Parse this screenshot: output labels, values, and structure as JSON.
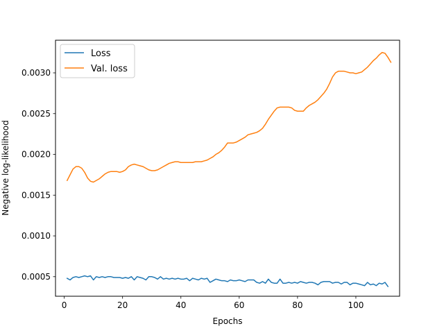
{
  "chart_data": {
    "type": "line",
    "title": "",
    "xlabel": "Epochs",
    "ylabel": "Negative log-likelihood",
    "xlim": [
      -3,
      115
    ],
    "ylim": [
      0.00026,
      0.0034
    ],
    "xticks": [
      0,
      20,
      40,
      60,
      80,
      100
    ],
    "yticks": [
      0.0005,
      0.001,
      0.0015,
      0.002,
      0.0025,
      0.003
    ],
    "ytick_labels": [
      "0.0005",
      "0.0010",
      "0.0015",
      "0.0020",
      "0.0025",
      "0.0030"
    ],
    "grid": false,
    "legend_position": "top-left",
    "series": [
      {
        "name": "Loss",
        "color": "#1f77b4",
        "points": [
          [
            1,
            0.00048
          ],
          [
            2,
            0.00046
          ],
          [
            3,
            0.00049
          ],
          [
            4,
            0.0005
          ],
          [
            5,
            0.00049
          ],
          [
            6,
            0.0005
          ],
          [
            7,
            0.00051
          ],
          [
            8,
            0.0005
          ],
          [
            9,
            0.00051
          ],
          [
            10,
            0.00046
          ],
          [
            11,
            0.0005
          ],
          [
            12,
            0.00049
          ],
          [
            13,
            0.0005
          ],
          [
            14,
            0.00049
          ],
          [
            15,
            0.0005
          ],
          [
            16,
            0.0005
          ],
          [
            17,
            0.00049
          ],
          [
            18,
            0.00049
          ],
          [
            19,
            0.00049
          ],
          [
            20,
            0.00048
          ],
          [
            21,
            0.00049
          ],
          [
            22,
            0.00048
          ],
          [
            23,
            0.0005
          ],
          [
            24,
            0.00046
          ],
          [
            25,
            0.0005
          ],
          [
            26,
            0.00049
          ],
          [
            27,
            0.00048
          ],
          [
            28,
            0.00046
          ],
          [
            29,
            0.0005
          ],
          [
            30,
            0.0005
          ],
          [
            31,
            0.00049
          ],
          [
            32,
            0.00047
          ],
          [
            33,
            0.0005
          ],
          [
            34,
            0.00047
          ],
          [
            35,
            0.00048
          ],
          [
            36,
            0.00047
          ],
          [
            37,
            0.00048
          ],
          [
            38,
            0.00047
          ],
          [
            39,
            0.00048
          ],
          [
            40,
            0.00047
          ],
          [
            41,
            0.00047
          ],
          [
            42,
            0.00048
          ],
          [
            43,
            0.00045
          ],
          [
            44,
            0.00048
          ],
          [
            45,
            0.00047
          ],
          [
            46,
            0.00046
          ],
          [
            47,
            0.00048
          ],
          [
            48,
            0.00047
          ],
          [
            49,
            0.00048
          ],
          [
            50,
            0.00043
          ],
          [
            51,
            0.00045
          ],
          [
            52,
            0.00047
          ],
          [
            53,
            0.00046
          ],
          [
            54,
            0.00045
          ],
          [
            55,
            0.00045
          ],
          [
            56,
            0.00044
          ],
          [
            57,
            0.00046
          ],
          [
            58,
            0.00045
          ],
          [
            59,
            0.00045
          ],
          [
            60,
            0.00046
          ],
          [
            61,
            0.00045
          ],
          [
            62,
            0.00044
          ],
          [
            63,
            0.00046
          ],
          [
            64,
            0.00046
          ],
          [
            65,
            0.00046
          ],
          [
            66,
            0.00043
          ],
          [
            67,
            0.00042
          ],
          [
            68,
            0.00044
          ],
          [
            69,
            0.00042
          ],
          [
            70,
            0.00047
          ],
          [
            71,
            0.00043
          ],
          [
            72,
            0.00042
          ],
          [
            73,
            0.00042
          ],
          [
            74,
            0.00047
          ],
          [
            75,
            0.00042
          ],
          [
            76,
            0.00042
          ],
          [
            77,
            0.00043
          ],
          [
            78,
            0.00042
          ],
          [
            79,
            0.00043
          ],
          [
            80,
            0.00042
          ],
          [
            81,
            0.00044
          ],
          [
            82,
            0.00043
          ],
          [
            83,
            0.00042
          ],
          [
            84,
            0.00043
          ],
          [
            85,
            0.00043
          ],
          [
            86,
            0.00042
          ],
          [
            87,
            0.0004
          ],
          [
            88,
            0.00043
          ],
          [
            89,
            0.00044
          ],
          [
            90,
            0.00044
          ],
          [
            91,
            0.00044
          ],
          [
            92,
            0.00042
          ],
          [
            93,
            0.00043
          ],
          [
            94,
            0.00043
          ],
          [
            95,
            0.00041
          ],
          [
            96,
            0.00043
          ],
          [
            97,
            0.00043
          ],
          [
            98,
            0.0004
          ],
          [
            99,
            0.00042
          ],
          [
            100,
            0.00042
          ],
          [
            101,
            0.00041
          ],
          [
            102,
            0.0004
          ],
          [
            103,
            0.00039
          ],
          [
            104,
            0.00043
          ],
          [
            105,
            0.0004
          ],
          [
            106,
            0.00041
          ],
          [
            107,
            0.00039
          ],
          [
            108,
            0.00042
          ],
          [
            109,
            0.00041
          ],
          [
            110,
            0.00043
          ],
          [
            111,
            0.00038
          ]
        ]
      },
      {
        "name": "Val. loss",
        "color": "#ff7f0e",
        "points": [
          [
            1,
            0.00168
          ],
          [
            2,
            0.00175
          ],
          [
            3,
            0.00182
          ],
          [
            4,
            0.00185
          ],
          [
            5,
            0.00185
          ],
          [
            6,
            0.00183
          ],
          [
            7,
            0.00178
          ],
          [
            8,
            0.00171
          ],
          [
            9,
            0.00167
          ],
          [
            10,
            0.00166
          ],
          [
            11,
            0.00168
          ],
          [
            12,
            0.0017
          ],
          [
            13,
            0.00173
          ],
          [
            14,
            0.00176
          ],
          [
            15,
            0.00178
          ],
          [
            16,
            0.00179
          ],
          [
            17,
            0.00179
          ],
          [
            18,
            0.00179
          ],
          [
            19,
            0.00178
          ],
          [
            20,
            0.00179
          ],
          [
            21,
            0.00181
          ],
          [
            22,
            0.00185
          ],
          [
            23,
            0.00187
          ],
          [
            24,
            0.00188
          ],
          [
            25,
            0.00187
          ],
          [
            26,
            0.00186
          ],
          [
            27,
            0.00185
          ],
          [
            28,
            0.00183
          ],
          [
            29,
            0.00181
          ],
          [
            30,
            0.0018
          ],
          [
            31,
            0.0018
          ],
          [
            32,
            0.00181
          ],
          [
            33,
            0.00183
          ],
          [
            34,
            0.00185
          ],
          [
            35,
            0.00187
          ],
          [
            36,
            0.00189
          ],
          [
            37,
            0.0019
          ],
          [
            38,
            0.00191
          ],
          [
            39,
            0.00191
          ],
          [
            40,
            0.0019
          ],
          [
            41,
            0.0019
          ],
          [
            42,
            0.0019
          ],
          [
            43,
            0.0019
          ],
          [
            44,
            0.0019
          ],
          [
            45,
            0.00191
          ],
          [
            46,
            0.00191
          ],
          [
            47,
            0.00191
          ],
          [
            48,
            0.00192
          ],
          [
            49,
            0.00193
          ],
          [
            50,
            0.00195
          ],
          [
            51,
            0.00197
          ],
          [
            52,
            0.002
          ],
          [
            53,
            0.00202
          ],
          [
            54,
            0.00205
          ],
          [
            55,
            0.00209
          ],
          [
            56,
            0.00214
          ],
          [
            57,
            0.00214
          ],
          [
            58,
            0.00214
          ],
          [
            59,
            0.00215
          ],
          [
            60,
            0.00217
          ],
          [
            61,
            0.00219
          ],
          [
            62,
            0.00221
          ],
          [
            63,
            0.00224
          ],
          [
            64,
            0.00225
          ],
          [
            65,
            0.00226
          ],
          [
            66,
            0.00227
          ],
          [
            67,
            0.00229
          ],
          [
            68,
            0.00232
          ],
          [
            69,
            0.00237
          ],
          [
            70,
            0.00243
          ],
          [
            71,
            0.00248
          ],
          [
            72,
            0.00253
          ],
          [
            73,
            0.00257
          ],
          [
            74,
            0.00258
          ],
          [
            75,
            0.00258
          ],
          [
            76,
            0.00258
          ],
          [
            77,
            0.00258
          ],
          [
            78,
            0.00257
          ],
          [
            79,
            0.00254
          ],
          [
            80,
            0.00253
          ],
          [
            81,
            0.00253
          ],
          [
            82,
            0.00253
          ],
          [
            83,
            0.00257
          ],
          [
            84,
            0.0026
          ],
          [
            85,
            0.00262
          ],
          [
            86,
            0.00264
          ],
          [
            87,
            0.00267
          ],
          [
            88,
            0.00271
          ],
          [
            89,
            0.00275
          ],
          [
            90,
            0.0028
          ],
          [
            91,
            0.00287
          ],
          [
            92,
            0.00295
          ],
          [
            93,
            0.003
          ],
          [
            94,
            0.00302
          ],
          [
            95,
            0.00302
          ],
          [
            96,
            0.00302
          ],
          [
            97,
            0.00301
          ],
          [
            98,
            0.003
          ],
          [
            99,
            0.003
          ],
          [
            100,
            0.00299
          ],
          [
            101,
            0.003
          ],
          [
            102,
            0.00301
          ],
          [
            103,
            0.00304
          ],
          [
            104,
            0.00307
          ],
          [
            105,
            0.00311
          ],
          [
            106,
            0.00315
          ],
          [
            107,
            0.00318
          ],
          [
            108,
            0.00322
          ],
          [
            109,
            0.00325
          ],
          [
            110,
            0.00324
          ],
          [
            111,
            0.00319
          ],
          [
            112,
            0.00313
          ]
        ]
      }
    ]
  }
}
